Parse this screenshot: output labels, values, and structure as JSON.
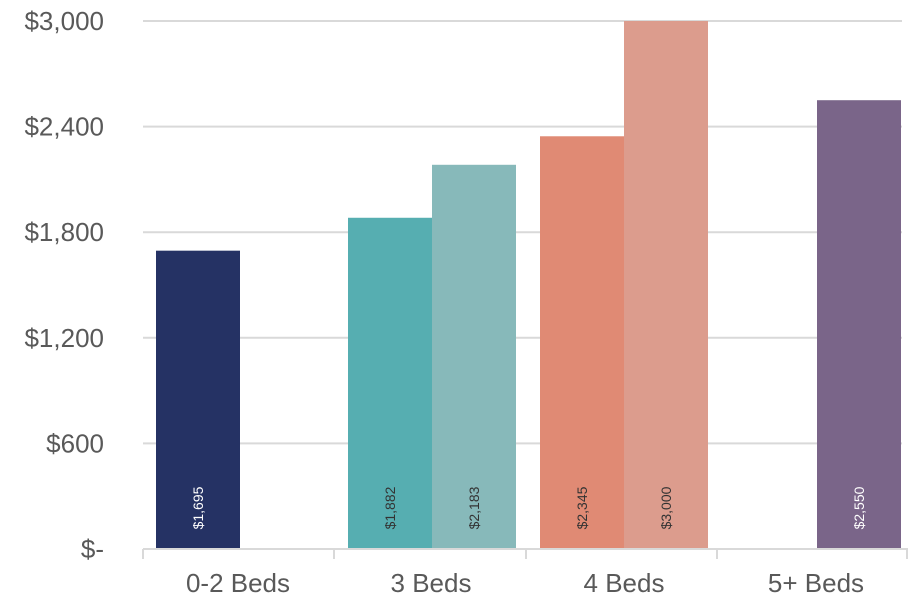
{
  "chart_data": {
    "type": "bar",
    "categories": [
      "0-2 Beds",
      "3 Beds",
      "4 Beds",
      "5+ Beds"
    ],
    "bars": [
      {
        "category": "0-2 Beds",
        "value": 1695,
        "label": "$1,695",
        "color": "#253264",
        "label_color": "#ffffff"
      },
      {
        "category": "3 Beds",
        "value": 1882,
        "label": "$1,882",
        "color": "#56aeb1",
        "label_color": "#333333"
      },
      {
        "category": "3 Beds",
        "value": 2183,
        "label": "$2,183",
        "color": "#87b9ba",
        "label_color": "#333333"
      },
      {
        "category": "4 Beds",
        "value": 2345,
        "label": "$2,345",
        "color": "#e08a74",
        "label_color": "#333333"
      },
      {
        "category": "4 Beds",
        "value": 3000,
        "label": "$3,000",
        "color": "#dc9c8d",
        "label_color": "#333333"
      },
      {
        "category": "5+ Beds",
        "value": 2550,
        "label": "$2,550",
        "color": "#7a6589",
        "label_color": "#ffffff"
      }
    ],
    "y_ticks": [
      {
        "value": 0,
        "label": "$-"
      },
      {
        "value": 600,
        "label": "$600"
      },
      {
        "value": 1200,
        "label": "$1,200"
      },
      {
        "value": 1800,
        "label": "$1,800"
      },
      {
        "value": 2400,
        "label": "$2,400"
      },
      {
        "value": 3000,
        "label": "$3,000"
      }
    ],
    "ylim": [
      0,
      3000
    ],
    "grid": true,
    "legend": "none",
    "title": "",
    "xlabel": "",
    "ylabel": "",
    "colors": {
      "grid": "#d9d9d9",
      "axis": "#d9d9d9",
      "tick_text": "#595959"
    }
  }
}
